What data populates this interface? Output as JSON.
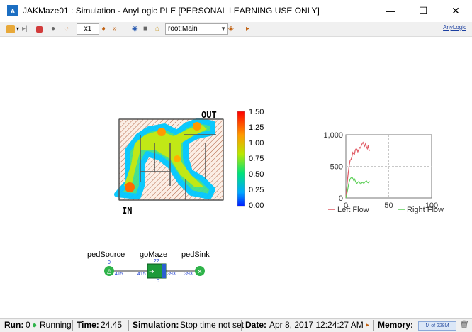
{
  "window": {
    "app_icon": "anylogic-logo-icon",
    "title": "JAKMaze01 : Simulation - AnyLogic PLE [PERSONAL LEARNING USE ONLY]",
    "minimize": "—",
    "maximize": "☐",
    "close": "✕"
  },
  "toolbar": {
    "speed": "x1",
    "root_selector": "root:Main",
    "brand": "AnyLogic"
  },
  "maze": {
    "out_label": "OUT",
    "in_label": "IN",
    "colorbar_ticks": [
      "1.50",
      "1.25",
      "1.00",
      "0.75",
      "0.50",
      "0.25",
      "0.00"
    ]
  },
  "flowchart": {
    "blocks": [
      {
        "name": "pedSource",
        "top_count": "0",
        "bottom_left": "",
        "bottom_right": "415",
        "icon": "pedestrian-source-icon"
      },
      {
        "name": "goMaze",
        "top_count": "22",
        "bottom_left": "415",
        "bottom_right": "393",
        "below": "0",
        "icon": "pedestrian-go-icon"
      },
      {
        "name": "pedSink",
        "top_count": "",
        "bottom_left": "393",
        "bottom_right": "",
        "icon": "pedestrian-sink-icon"
      }
    ]
  },
  "chart_data": {
    "type": "line",
    "title": "",
    "xlabel": "",
    "ylabel": "",
    "xlim": [
      0,
      100
    ],
    "ylim": [
      0,
      1000
    ],
    "x_ticks": [
      "0",
      "50",
      "100"
    ],
    "y_ticks": [
      "0",
      "500",
      "1,000"
    ],
    "grid": true,
    "legend_position": "bottom",
    "series": [
      {
        "name": "Left Flow",
        "color": "#e05a64",
        "x": [
          0,
          1,
          2,
          3,
          4,
          5,
          6,
          7,
          8,
          9,
          10,
          11,
          12,
          13,
          14,
          15,
          16,
          17,
          18,
          19,
          20,
          21,
          22,
          23,
          24,
          25,
          26,
          27,
          28
        ],
        "y": [
          0,
          150,
          300,
          420,
          520,
          600,
          610,
          650,
          720,
          700,
          690,
          760,
          780,
          770,
          730,
          760,
          800,
          790,
          830,
          860,
          880,
          850,
          820,
          860,
          810,
          780,
          830,
          760,
          750
        ]
      },
      {
        "name": "Right Flow",
        "color": "#5fd05a",
        "x": [
          0,
          1,
          2,
          3,
          4,
          5,
          6,
          7,
          8,
          9,
          10,
          11,
          12,
          13,
          14,
          15,
          16,
          17,
          18,
          19,
          20,
          21,
          22,
          23,
          24,
          25,
          26,
          27,
          28
        ],
        "y": [
          0,
          60,
          120,
          200,
          260,
          300,
          320,
          330,
          310,
          280,
          300,
          270,
          240,
          230,
          250,
          260,
          250,
          220,
          230,
          250,
          240,
          230,
          250,
          260,
          270,
          250,
          240,
          250,
          260
        ]
      }
    ]
  },
  "status": {
    "run_label": "Run:",
    "run_value": "0",
    "running": "Running",
    "time_label": "Time:",
    "time_value": "24.45",
    "sim_label": "Simulation:",
    "sim_value": "Stop time not set",
    "date_label": "Date:",
    "date_value": "Apr 8, 2017 12:24:27 AM",
    "memory_label": "Memory:",
    "memory_value": "M of 228M"
  }
}
